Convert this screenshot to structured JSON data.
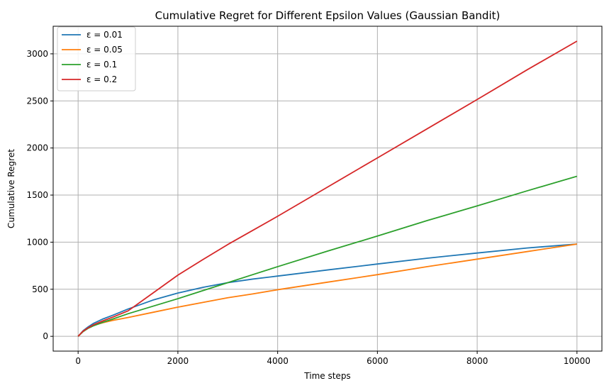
{
  "chart_data": {
    "type": "line",
    "title": "Cumulative Regret for Different Epsilon Values (Gaussian Bandit)",
    "xlabel": "Time steps",
    "ylabel": "Cumulative Regret",
    "xlim": [
      -500,
      10500
    ],
    "ylim": [
      -157,
      3293
    ],
    "xticks": [
      0,
      2000,
      4000,
      6000,
      8000,
      10000
    ],
    "xtick_labels": [
      "0",
      "2000",
      "4000",
      "6000",
      "8000",
      "10000"
    ],
    "yticks": [
      0,
      500,
      1000,
      1500,
      2000,
      2500,
      3000
    ],
    "ytick_labels": [
      "0",
      "500",
      "1000",
      "1500",
      "2000",
      "2500",
      "3000"
    ],
    "grid": true,
    "legend_position": "upper-left",
    "x": [
      0,
      100,
      200,
      300,
      500,
      700,
      1000,
      1500,
      2000,
      2500,
      3000,
      3500,
      4000,
      5000,
      6000,
      7000,
      8000,
      9000,
      10000
    ],
    "series": [
      {
        "name": "ε = 0.01",
        "color": "#1f77b4",
        "values": [
          0,
          60,
          100,
          135,
          185,
          225,
          290,
          385,
          460,
          520,
          570,
          608,
          640,
          705,
          768,
          830,
          885,
          938,
          980
        ]
      },
      {
        "name": "ε = 0.05",
        "color": "#ff7f0e",
        "values": [
          0,
          55,
          90,
          115,
          145,
          170,
          200,
          255,
          310,
          360,
          410,
          450,
          495,
          575,
          655,
          740,
          820,
          900,
          980
        ]
      },
      {
        "name": "ε = 0.1",
        "color": "#2ca02c",
        "values": [
          0,
          50,
          85,
          110,
          150,
          185,
          240,
          320,
          400,
          485,
          570,
          655,
          740,
          905,
          1065,
          1230,
          1385,
          1545,
          1700
        ]
      },
      {
        "name": "ε = 0.2",
        "color": "#d62728",
        "values": [
          0,
          55,
          90,
          120,
          165,
          205,
          270,
          460,
          650,
          815,
          975,
          1125,
          1275,
          1585,
          1895,
          2205,
          2515,
          2830,
          3135
        ]
      }
    ]
  }
}
